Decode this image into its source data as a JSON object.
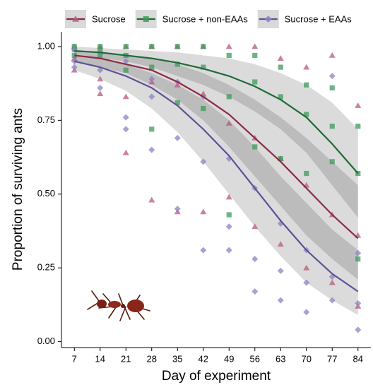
{
  "chart_data": {
    "type": "line",
    "x_label": "Day of experiment",
    "y_label": "Proportion of surviving ants",
    "x": [
      7,
      14,
      21,
      28,
      35,
      42,
      49,
      56,
      63,
      70,
      77,
      84
    ],
    "xlim": [
      3.5,
      87.5
    ],
    "ylim": [
      -0.02,
      1.05
    ],
    "xticks": [
      7,
      14,
      21,
      28,
      35,
      42,
      49,
      56,
      63,
      70,
      77,
      84
    ],
    "yticks": [
      {
        "value": 0,
        "label": "0.00"
      },
      {
        "value": 0.25,
        "label": "0.25"
      },
      {
        "value": 0.5,
        "label": "0.50"
      },
      {
        "value": 0.75,
        "label": "0.75"
      },
      {
        "value": 1,
        "label": "1.00"
      }
    ],
    "legend": "top",
    "series": [
      {
        "name": "Sucrose",
        "color": "#8c2a45",
        "point_color": "#b85a7a",
        "marker": "triangle",
        "values": [
          0.97,
          0.96,
          0.94,
          0.92,
          0.88,
          0.83,
          0.77,
          0.69,
          0.61,
          0.52,
          0.43,
          0.35
        ],
        "ci_upper": [
          0.99,
          0.98,
          0.97,
          0.96,
          0.94,
          0.91,
          0.87,
          0.82,
          0.76,
          0.69,
          0.61,
          0.53
        ],
        "ci_lower": [
          0.95,
          0.93,
          0.91,
          0.87,
          0.82,
          0.75,
          0.66,
          0.56,
          0.46,
          0.36,
          0.28,
          0.21
        ],
        "points_x": [
          7,
          7,
          7,
          14,
          14,
          14,
          21,
          21,
          21,
          28,
          28,
          28,
          35,
          35,
          35,
          42,
          42,
          42,
          49,
          49,
          49,
          56,
          56,
          56,
          63,
          63,
          63,
          70,
          70,
          70,
          77,
          77,
          77,
          84,
          84,
          84
        ],
        "points_y": [
          1.0,
          0.96,
          0.92,
          1.0,
          0.89,
          0.84,
          1.0,
          0.83,
          0.64,
          1.0,
          0.88,
          0.48,
          1.0,
          0.87,
          0.44,
          1.0,
          0.84,
          0.44,
          1.0,
          0.74,
          0.49,
          1.0,
          0.69,
          0.39,
          0.96,
          0.62,
          0.33,
          0.93,
          0.53,
          0.25,
          0.97,
          0.43,
          0.2,
          0.8,
          0.36,
          0.12
        ]
      },
      {
        "name": "Sucrose + non-EAAs",
        "color": "#1f6b36",
        "point_color": "#3d9a5a",
        "marker": "square",
        "values": [
          0.985,
          0.98,
          0.97,
          0.96,
          0.945,
          0.925,
          0.9,
          0.865,
          0.82,
          0.76,
          0.67,
          0.57
        ],
        "ci_upper": [
          1.0,
          0.995,
          0.99,
          0.985,
          0.98,
          0.97,
          0.96,
          0.94,
          0.91,
          0.87,
          0.81,
          0.72
        ],
        "ci_lower": [
          0.97,
          0.96,
          0.95,
          0.93,
          0.9,
          0.87,
          0.83,
          0.78,
          0.72,
          0.64,
          0.53,
          0.42
        ],
        "points_x": [
          7,
          7,
          7,
          14,
          14,
          14,
          21,
          21,
          21,
          28,
          28,
          28,
          35,
          35,
          35,
          42,
          42,
          42,
          49,
          49,
          49,
          56,
          56,
          56,
          63,
          63,
          63,
          70,
          70,
          70,
          77,
          77,
          77,
          84,
          84,
          84
        ],
        "points_y": [
          1.0,
          0.99,
          0.97,
          1.0,
          0.99,
          0.97,
          1.0,
          0.97,
          0.92,
          1.0,
          0.93,
          0.72,
          1.0,
          0.94,
          0.81,
          1.0,
          0.93,
          0.79,
          0.97,
          0.83,
          0.43,
          0.97,
          0.88,
          0.66,
          0.93,
          0.83,
          0.62,
          0.87,
          0.77,
          0.57,
          0.86,
          0.73,
          0.61,
          0.73,
          0.57,
          0.28
        ]
      },
      {
        "name": "Sucrose + EAAs",
        "color": "#5e5196",
        "point_color": "#8f80c2",
        "marker": "diamond",
        "values": [
          0.95,
          0.93,
          0.9,
          0.86,
          0.8,
          0.72,
          0.63,
          0.52,
          0.41,
          0.31,
          0.23,
          0.17
        ],
        "ci_upper": [
          0.97,
          0.96,
          0.94,
          0.91,
          0.87,
          0.82,
          0.75,
          0.66,
          0.56,
          0.47,
          0.38,
          0.31
        ],
        "ci_lower": [
          0.92,
          0.89,
          0.85,
          0.79,
          0.71,
          0.61,
          0.5,
          0.39,
          0.29,
          0.2,
          0.14,
          0.09
        ],
        "points_x": [
          7,
          7,
          7,
          14,
          14,
          14,
          21,
          21,
          21,
          28,
          28,
          28,
          35,
          35,
          35,
          42,
          42,
          42,
          49,
          49,
          49,
          56,
          56,
          56,
          63,
          63,
          63,
          70,
          70,
          70,
          77,
          77,
          77,
          84,
          84,
          84
        ],
        "points_y": [
          0.99,
          0.95,
          0.93,
          0.98,
          0.92,
          0.86,
          0.95,
          0.76,
          0.72,
          0.89,
          0.83,
          0.65,
          0.88,
          0.69,
          0.45,
          0.83,
          0.61,
          0.31,
          0.62,
          0.39,
          0.31,
          0.52,
          0.28,
          0.17,
          0.4,
          0.24,
          0.14,
          0.31,
          0.2,
          0.1,
          0.9,
          0.22,
          0.14,
          0.3,
          0.13,
          0.04
        ]
      }
    ]
  }
}
